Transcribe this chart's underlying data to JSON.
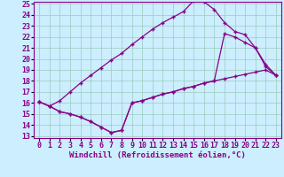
{
  "xlabel": "Windchill (Refroidissement éolien,°C)",
  "background_color": "#cceeff",
  "grid_color": "#99ccbb",
  "line_color": "#880088",
  "xmin": 0,
  "xmax": 23,
  "ymin": 13,
  "ymax": 25,
  "line1_x": [
    0,
    1,
    2,
    3,
    4,
    5,
    6,
    7,
    8,
    9,
    10,
    11,
    12,
    13,
    14,
    15,
    16,
    17,
    18,
    19,
    20,
    21,
    22,
    23
  ],
  "line1_y": [
    16.1,
    15.7,
    16.2,
    17.0,
    17.8,
    18.5,
    19.2,
    19.9,
    20.5,
    21.3,
    22.0,
    22.7,
    23.3,
    23.8,
    24.3,
    25.3,
    25.2,
    24.5,
    23.3,
    22.5,
    22.2,
    21.0,
    19.5,
    18.5
  ],
  "line2_x": [
    0,
    1,
    2,
    3,
    4,
    5,
    6,
    7,
    8,
    9,
    10,
    11,
    12,
    13,
    14,
    15,
    16,
    17,
    18,
    19,
    20,
    21,
    22,
    23
  ],
  "line2_y": [
    16.1,
    15.7,
    15.2,
    15.0,
    14.7,
    14.3,
    13.8,
    13.3,
    13.5,
    16.0,
    16.2,
    16.5,
    16.8,
    17.0,
    17.3,
    17.5,
    17.8,
    18.0,
    22.3,
    22.0,
    21.5,
    21.0,
    19.3,
    18.5
  ],
  "line3_x": [
    0,
    1,
    2,
    3,
    4,
    5,
    6,
    7,
    8,
    9,
    10,
    11,
    12,
    13,
    14,
    15,
    16,
    17,
    18,
    19,
    20,
    21,
    22,
    23
  ],
  "line3_y": [
    16.1,
    15.7,
    15.2,
    15.0,
    14.7,
    14.3,
    13.8,
    13.3,
    13.5,
    16.0,
    16.2,
    16.5,
    16.8,
    17.0,
    17.3,
    17.5,
    17.8,
    18.0,
    18.2,
    18.4,
    18.6,
    18.8,
    19.0,
    18.5
  ],
  "xlabel_fontsize": 6.5,
  "tick_fontsize": 6.0,
  "xtick_labels": [
    "0",
    "1",
    "2",
    "3",
    "4",
    "5",
    "6",
    "7",
    "8",
    "9",
    "10",
    "11",
    "12",
    "13",
    "14",
    "15",
    "16",
    "17",
    "18",
    "19",
    "20",
    "21",
    "22",
    "23"
  ]
}
